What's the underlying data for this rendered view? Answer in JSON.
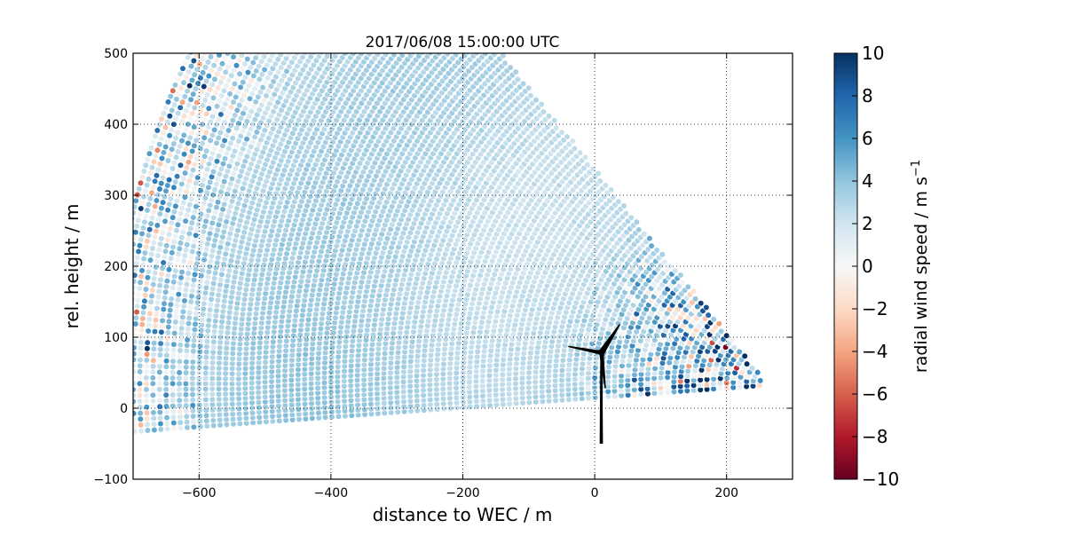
{
  "chart_data": {
    "type": "scatter",
    "title": "2017/06/08 15:00:00 UTC",
    "xlabel": "distance to WEC / m",
    "ylabel": "rel. height / m",
    "xlim": [
      -700,
      300
    ],
    "ylim": [
      -100,
      500
    ],
    "xticks": [
      -600,
      -400,
      -200,
      0,
      200
    ],
    "xtick_labels": [
      "−600",
      "−400",
      "−200",
      "0",
      "200"
    ],
    "yticks": [
      -100,
      0,
      100,
      200,
      300,
      400,
      500
    ],
    "ytick_labels": [
      "−100",
      "0",
      "100",
      "200",
      "300",
      "400",
      "500"
    ],
    "grid": true,
    "colorbar": {
      "label": "radial wind speed / m s",
      "label_superscript": "−1",
      "range": [
        -10,
        10
      ],
      "colormap": "RdBu",
      "ticks": [
        10,
        8,
        6,
        4,
        2,
        0,
        -2,
        -4,
        -6,
        -8,
        -10
      ],
      "tick_labels": [
        "10",
        "8",
        "6",
        "4",
        "2",
        "0",
        "−2",
        "−4",
        "−6",
        "−8",
        "−10"
      ]
    },
    "wind_turbine": {
      "x": 10,
      "hub_height": 78,
      "color": "#000000"
    }
  }
}
